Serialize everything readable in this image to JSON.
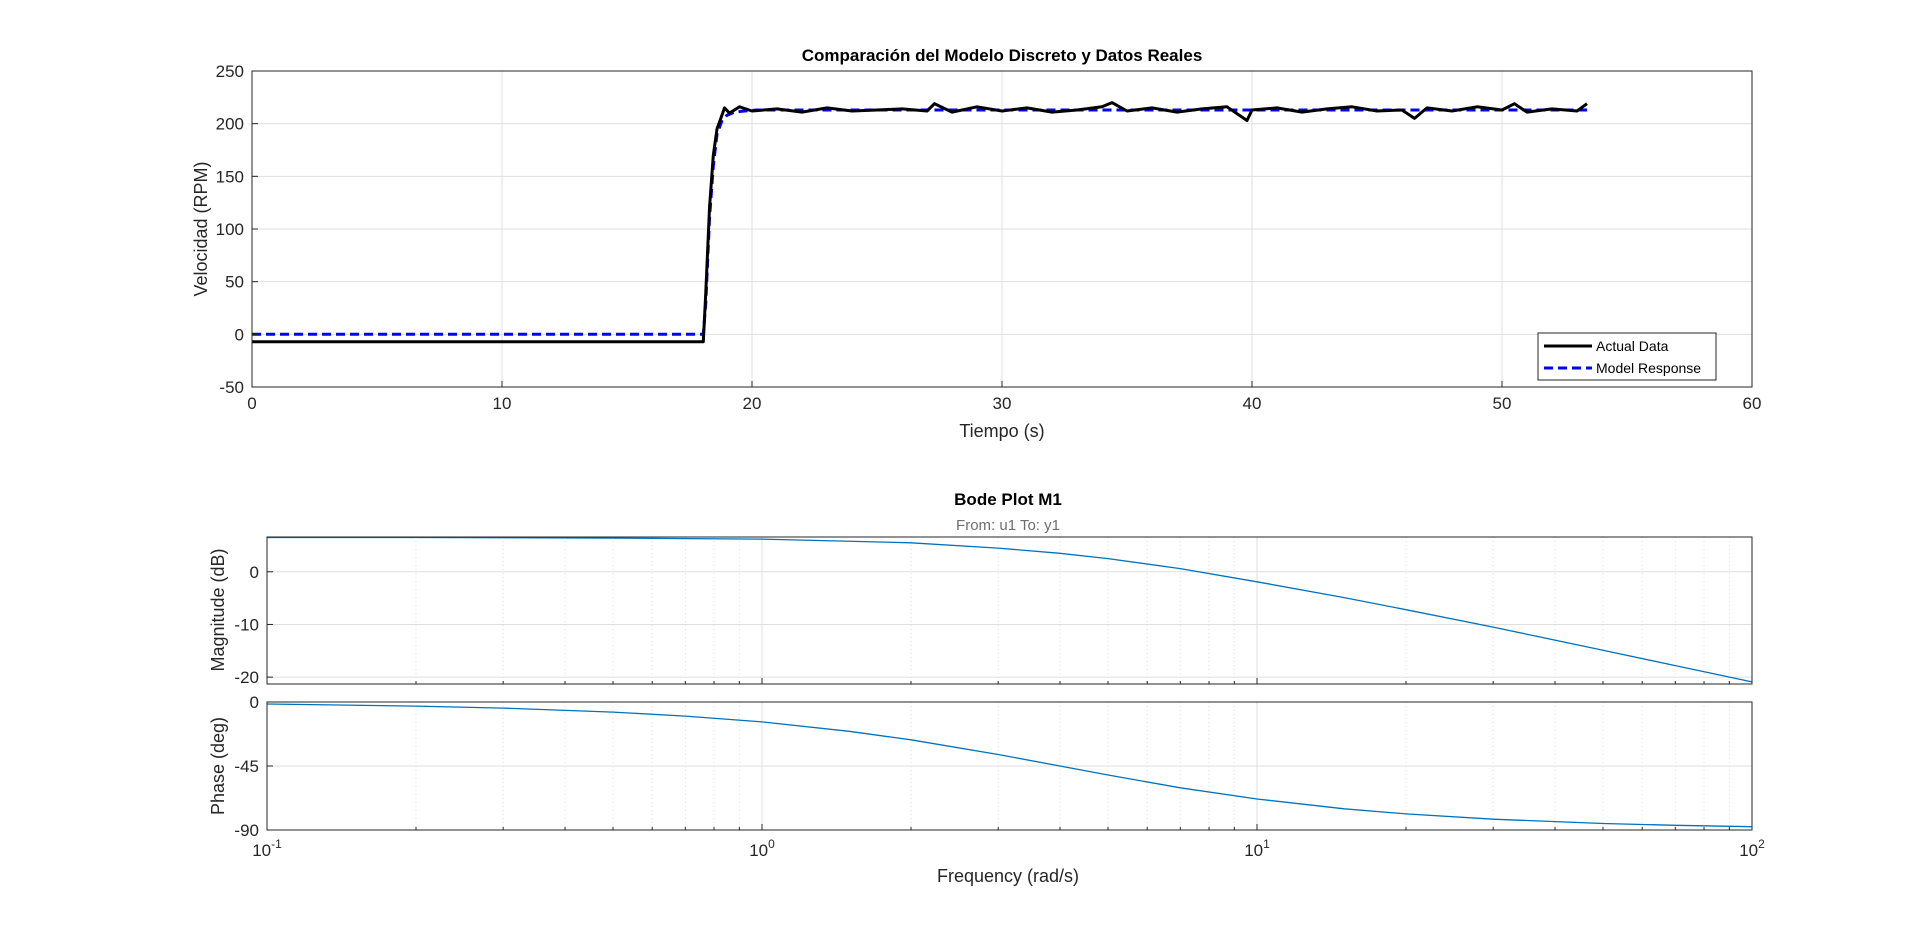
{
  "colors": {
    "actual": "#000000",
    "model": "#0000ff",
    "bode": "#0072bd",
    "grid": "#dfdfdf",
    "axis": "#262626"
  },
  "chart_data": [
    {
      "type": "line",
      "title": "Comparación del Modelo Discreto y Datos Reales",
      "xlabel": "Tiempo (s)",
      "ylabel": "Velocidad (RPM)",
      "xlim": [
        0,
        60
      ],
      "ylim": [
        -50,
        250
      ],
      "xticks": [
        0,
        10,
        20,
        30,
        40,
        50,
        60
      ],
      "yticks": [
        -50,
        0,
        50,
        100,
        150,
        200,
        250
      ],
      "xtick_labels": [
        "0",
        "10",
        "20",
        "30",
        "40",
        "50",
        "60"
      ],
      "ytick_labels": [
        "-50",
        "0",
        "50",
        "100",
        "150",
        "200",
        "250"
      ],
      "grid": true,
      "legend_position": "bottom-right",
      "series": [
        {
          "name": "Actual Data",
          "style": "solid",
          "x": [
            0,
            18.05,
            18.15,
            18.3,
            18.45,
            18.6,
            18.75,
            18.9,
            19.1,
            19.5,
            20,
            21,
            22,
            23,
            24,
            25,
            26,
            27,
            27.3,
            28,
            29,
            30,
            31,
            32,
            33,
            34,
            34.4,
            35,
            36,
            37,
            38,
            39,
            39.8,
            40,
            41,
            42,
            43,
            44,
            45,
            46,
            46.5,
            47,
            48,
            49,
            50,
            50.5,
            51,
            52,
            53,
            53.4
          ],
          "y": [
            -7,
            -7,
            40,
            120,
            170,
            195,
            205,
            215,
            210,
            216,
            212,
            214,
            211,
            215,
            212,
            213,
            214,
            212,
            219,
            211,
            216,
            212,
            215,
            211,
            213,
            216,
            220,
            212,
            215,
            211,
            214,
            216,
            203,
            213,
            215,
            211,
            214,
            216,
            212,
            213,
            205,
            215,
            212,
            216,
            213,
            219,
            211,
            214,
            212,
            219
          ]
        },
        {
          "name": "Model Response",
          "style": "dashed",
          "x": [
            0,
            18.05,
            18.15,
            18.3,
            18.45,
            18.6,
            18.8,
            19.0,
            19.3,
            19.7,
            20.2,
            21,
            25,
            30,
            35,
            40,
            45,
            50,
            53.4
          ],
          "y": [
            0,
            0,
            30,
            110,
            160,
            190,
            203,
            208,
            211,
            212,
            213,
            213,
            213,
            213,
            213,
            213,
            213,
            213,
            213
          ]
        }
      ]
    },
    {
      "type": "line",
      "title": "Bode Plot M1",
      "subtitle": "From: u1  To: y1",
      "xlabel": "Frequency  (rad/s)",
      "xscale": "log",
      "xlim": [
        0.1,
        100
      ],
      "grid": true,
      "xtick_labels": [
        {
          "base": "10",
          "exp": "-1"
        },
        {
          "base": "10",
          "exp": "0"
        },
        {
          "base": "10",
          "exp": "1"
        },
        {
          "base": "10",
          "exp": "2"
        }
      ],
      "panels": [
        {
          "ylabel": "Magnitude (dB)",
          "ylim": [
            -21.3,
            6.6
          ],
          "yticks": [
            -20,
            -10,
            0
          ],
          "ytick_labels": [
            "-20",
            "-10",
            "0"
          ],
          "series": [
            {
              "x": [
                0.1,
                0.2,
                0.5,
                1,
                2,
                3,
                4,
                5,
                7,
                10,
                15,
                20,
                30,
                50,
                70,
                100
              ],
              "y": [
                6.5,
                6.5,
                6.4,
                6.2,
                5.5,
                4.5,
                3.5,
                2.5,
                0.6,
                -1.9,
                -4.9,
                -7.2,
                -10.5,
                -14.9,
                -17.8,
                -20.9
              ]
            }
          ]
        },
        {
          "ylabel": "Phase (deg)",
          "ylim": [
            -90,
            0
          ],
          "yticks": [
            -90,
            -45,
            0
          ],
          "ytick_labels": [
            "-90",
            "-45",
            "0"
          ],
          "series": [
            {
              "x": [
                0.1,
                0.2,
                0.3,
                0.5,
                0.7,
                1,
                1.5,
                2,
                3,
                4,
                5,
                7,
                10,
                15,
                20,
                30,
                50,
                70,
                100
              ],
              "y": [
                -1.4,
                -2.9,
                -4.3,
                -7.1,
                -9.9,
                -14,
                -20.6,
                -26.6,
                -36.9,
                -45,
                -51.3,
                -60.3,
                -68.2,
                -75.1,
                -78.7,
                -82.4,
                -85.4,
                -86.7,
                -87.7
              ]
            }
          ]
        }
      ]
    }
  ]
}
